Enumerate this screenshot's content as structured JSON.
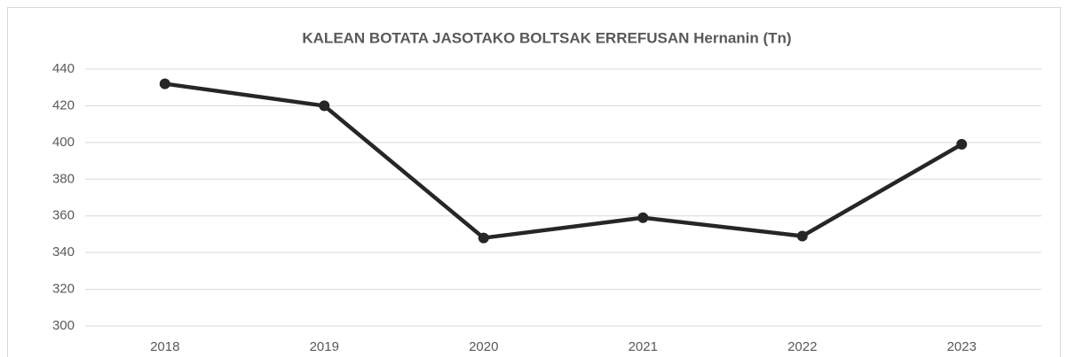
{
  "chart_data": {
    "type": "line",
    "title": "KALEAN BOTATA JASOTAKO BOLTSAK ERREFUSAN Hernanin (Tn)",
    "categories": [
      "2018",
      "2019",
      "2020",
      "2021",
      "2022",
      "2023"
    ],
    "values": [
      432,
      420,
      348,
      359,
      349,
      399
    ],
    "color": "#262626",
    "ylim": [
      300,
      440
    ],
    "yticks": [
      300,
      320,
      340,
      360,
      380,
      400,
      420,
      440
    ],
    "grid": true
  }
}
